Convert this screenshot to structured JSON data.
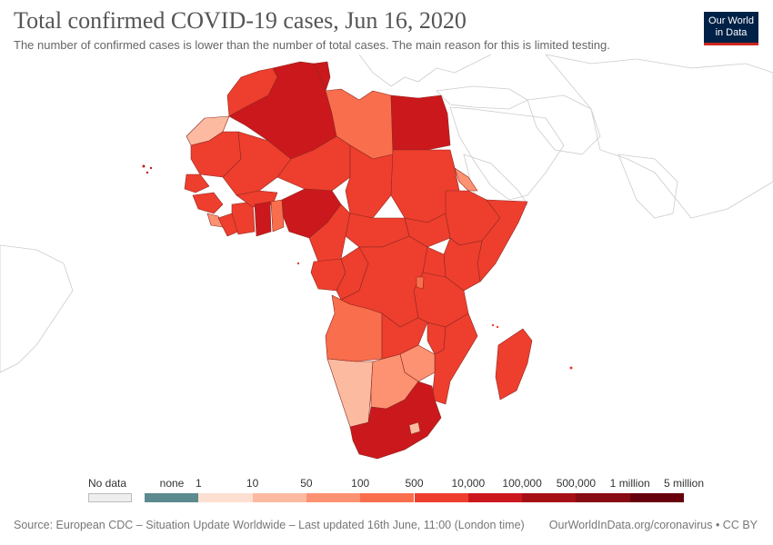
{
  "header": {
    "title": "Total confirmed COVID-19 cases, Jun 16, 2020",
    "subtitle": "The number of confirmed cases is lower than the number of total cases. The main reason for this is limited testing."
  },
  "logo": {
    "line1": "Our World",
    "line2": "in Data",
    "bg_color": "#002147",
    "accent_color": "#ce261e"
  },
  "legend": {
    "no_data_label": "No data",
    "no_data_color": "#eeeeee",
    "bins": [
      {
        "label": "none",
        "color": "#5c8b8f"
      },
      {
        "label": "1",
        "color": "#fde0d2"
      },
      {
        "label": "10",
        "color": "#fcbba1"
      },
      {
        "label": "50",
        "color": "#fc9272"
      },
      {
        "label": "100",
        "color": "#f96e4d"
      },
      {
        "label": "500",
        "color": "#ee3e2e"
      },
      {
        "label": "10,000",
        "color": "#cb181d"
      },
      {
        "label": "100,000",
        "color": "#a50f15"
      },
      {
        "label": "500,000",
        "color": "#860b14"
      },
      {
        "label": "1 million",
        "color": "#67000d"
      },
      {
        "label": "5 million",
        "color": "#67000d"
      }
    ]
  },
  "map": {
    "region": "Africa",
    "date": "Jun 16, 2020",
    "colors": {
      "very_high": "#cb181d",
      "high": "#ee3e2e",
      "mid": "#f96e4d",
      "low": "#fc9272",
      "lower": "#fcbba1",
      "background_land_stroke": "#cccccc",
      "border": "#8a2a20"
    }
  },
  "footer": {
    "source": "Source: European CDC – Situation Update Worldwide – Last updated 16th June, 11:00 (London time)",
    "credit": "OurWorldInData.org/coronavirus • CC BY"
  }
}
